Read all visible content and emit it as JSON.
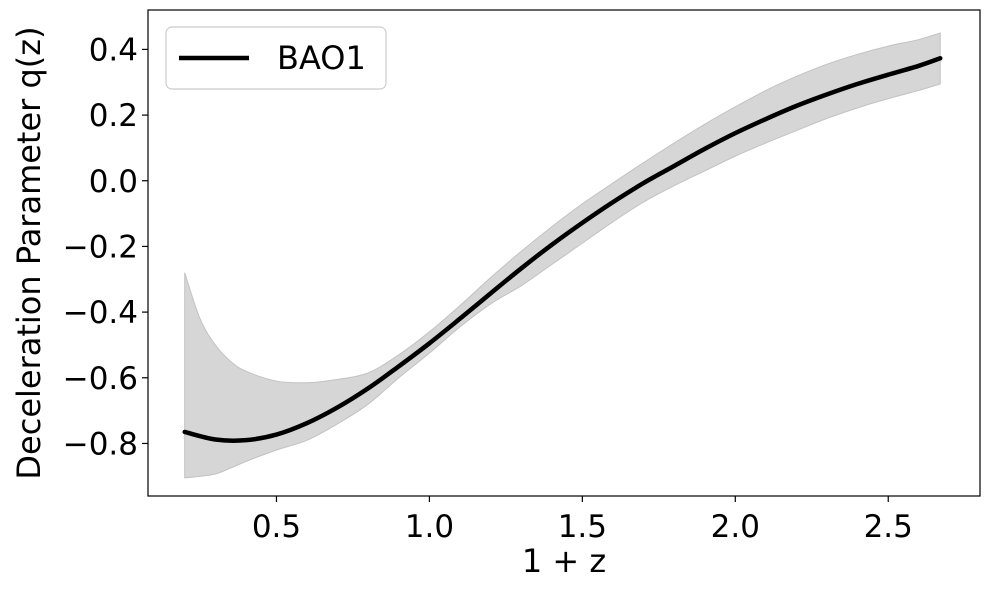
{
  "chart_data": {
    "type": "line",
    "xlabel": "1 + z",
    "ylabel": "Deceleration Parameter q(z)",
    "xlim": [
      0.08,
      2.8
    ],
    "ylim": [
      -0.96,
      0.52
    ],
    "x_ticks": [
      0.5,
      1.0,
      1.5,
      2.0,
      2.5
    ],
    "x_tick_labels": [
      "0.5",
      "1.0",
      "1.5",
      "2.0",
      "2.5"
    ],
    "y_ticks": [
      -0.8,
      -0.6,
      -0.4,
      -0.2,
      0.0,
      0.2,
      0.4
    ],
    "y_tick_labels": [
      "−0.8",
      "−0.6",
      "−0.4",
      "−0.2",
      "0.0",
      "0.2",
      "0.4"
    ],
    "legend_position": "top-left",
    "grid": false,
    "series": [
      {
        "name": "BAO1",
        "color": "#000000",
        "x": [
          0.2,
          0.3,
          0.4,
          0.5,
          0.6,
          0.7,
          0.8,
          0.9,
          1.0,
          1.1,
          1.2,
          1.3,
          1.4,
          1.5,
          1.6,
          1.7,
          1.8,
          1.9,
          2.0,
          2.1,
          2.2,
          2.3,
          2.4,
          2.5,
          2.6,
          2.67
        ],
        "y": [
          -0.765,
          -0.788,
          -0.79,
          -0.773,
          -0.738,
          -0.69,
          -0.632,
          -0.565,
          -0.495,
          -0.42,
          -0.343,
          -0.267,
          -0.195,
          -0.128,
          -0.065,
          -0.007,
          0.045,
          0.097,
          0.145,
          0.188,
          0.228,
          0.263,
          0.295,
          0.323,
          0.35,
          0.373
        ]
      }
    ],
    "band": {
      "color": "#d6d6d6",
      "x": [
        0.2,
        0.25,
        0.3,
        0.35,
        0.4,
        0.5,
        0.6,
        0.7,
        0.8,
        0.9,
        1.0,
        1.1,
        1.2,
        1.3,
        1.4,
        1.5,
        1.6,
        1.7,
        1.8,
        1.9,
        2.0,
        2.1,
        2.2,
        2.3,
        2.4,
        2.5,
        2.6,
        2.67
      ],
      "upper": [
        -0.28,
        -0.42,
        -0.5,
        -0.55,
        -0.58,
        -0.61,
        -0.615,
        -0.605,
        -0.585,
        -0.53,
        -0.46,
        -0.38,
        -0.295,
        -0.215,
        -0.14,
        -0.07,
        -0.007,
        0.055,
        0.115,
        0.172,
        0.225,
        0.275,
        0.318,
        0.355,
        0.385,
        0.41,
        0.43,
        0.45
      ],
      "lower": [
        -0.905,
        -0.9,
        -0.893,
        -0.875,
        -0.855,
        -0.82,
        -0.79,
        -0.74,
        -0.68,
        -0.6,
        -0.525,
        -0.445,
        -0.375,
        -0.32,
        -0.255,
        -0.19,
        -0.125,
        -0.065,
        -0.015,
        0.03,
        0.075,
        0.115,
        0.153,
        0.19,
        0.222,
        0.25,
        0.275,
        0.295
      ]
    }
  }
}
